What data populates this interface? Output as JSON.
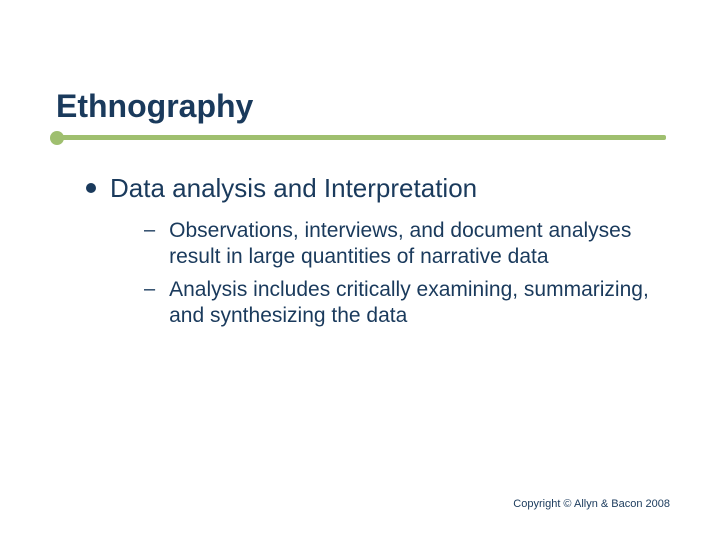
{
  "slide": {
    "title": "Ethnography",
    "accent_color": "#9fbf6f",
    "text_color": "#1a3a5c",
    "background_color": "#ffffff",
    "title_fontsize": 32,
    "main_fontsize": 26,
    "sub_fontsize": 21,
    "main_item": {
      "text": "Data analysis and Interpretation"
    },
    "sub_items": [
      {
        "text": "Observations, interviews, and document analyses result in large quantities of narrative data"
      },
      {
        "text": "Analysis includes critically examining, summarizing, and synthesizing the data"
      }
    ],
    "footer": "Copyright © Allyn & Bacon 2008"
  }
}
